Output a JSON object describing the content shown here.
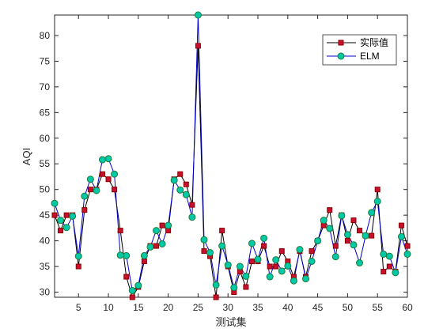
{
  "chart_data": {
    "type": "line",
    "title": "",
    "xlabel": "测试集",
    "ylabel": "AQI",
    "xlim": [
      1,
      60
    ],
    "ylim": [
      29,
      84
    ],
    "x_ticks": [
      5,
      10,
      15,
      20,
      25,
      30,
      35,
      40,
      45,
      50,
      55,
      60
    ],
    "y_ticks": [
      30,
      35,
      40,
      45,
      50,
      55,
      60,
      65,
      70,
      75,
      80
    ],
    "grid": false,
    "legend_position": "top-right",
    "x": [
      1,
      2,
      3,
      4,
      5,
      6,
      7,
      8,
      9,
      10,
      11,
      12,
      13,
      14,
      15,
      16,
      17,
      18,
      19,
      20,
      21,
      22,
      23,
      24,
      25,
      26,
      27,
      28,
      29,
      30,
      31,
      32,
      33,
      34,
      35,
      36,
      37,
      38,
      39,
      40,
      41,
      42,
      43,
      44,
      45,
      46,
      47,
      48,
      49,
      50,
      51,
      52,
      53,
      54,
      55,
      56,
      57,
      58,
      59,
      60
    ],
    "series": [
      {
        "name": "实际值",
        "color": "#8b0000",
        "line_color": "#000000",
        "marker": "square",
        "values": [
          45,
          42,
          45,
          45,
          35,
          46,
          50,
          50,
          53,
          52,
          50,
          42,
          33,
          29,
          31,
          36,
          39,
          39,
          43,
          42,
          52,
          53,
          51,
          47,
          78,
          38,
          37,
          29,
          42,
          35,
          30,
          34,
          31,
          36,
          36,
          39,
          35,
          35,
          38,
          36,
          33,
          38,
          33,
          38,
          40,
          43,
          46,
          39,
          45,
          40,
          44,
          42,
          41,
          41,
          50,
          34,
          35,
          34,
          43,
          39
        ]
      },
      {
        "name": "ELM",
        "color": "#1e7b3a",
        "line_color": "#0000cd",
        "marker_fill": "#00c9a7",
        "marker": "circle",
        "values": [
          47.3,
          44,
          42.6,
          44.8,
          37,
          48.7,
          52,
          49.8,
          55.8,
          56,
          53,
          37.2,
          37.1,
          30.3,
          31.3,
          37.1,
          38.8,
          42,
          39.4,
          43,
          51.8,
          49.9,
          49,
          44.6,
          84,
          40.2,
          37.7,
          31.4,
          39,
          35.3,
          30.9,
          35,
          33.1,
          39.5,
          36.4,
          40.5,
          33,
          36.3,
          34.1,
          35.1,
          32.2,
          38.3,
          32.6,
          36,
          40,
          44,
          42.4,
          36.9,
          44.9,
          41.2,
          39.2,
          35.7,
          41,
          45.5,
          47.7,
          37.4,
          37,
          33.8,
          40.8,
          37.4
        ]
      }
    ]
  }
}
